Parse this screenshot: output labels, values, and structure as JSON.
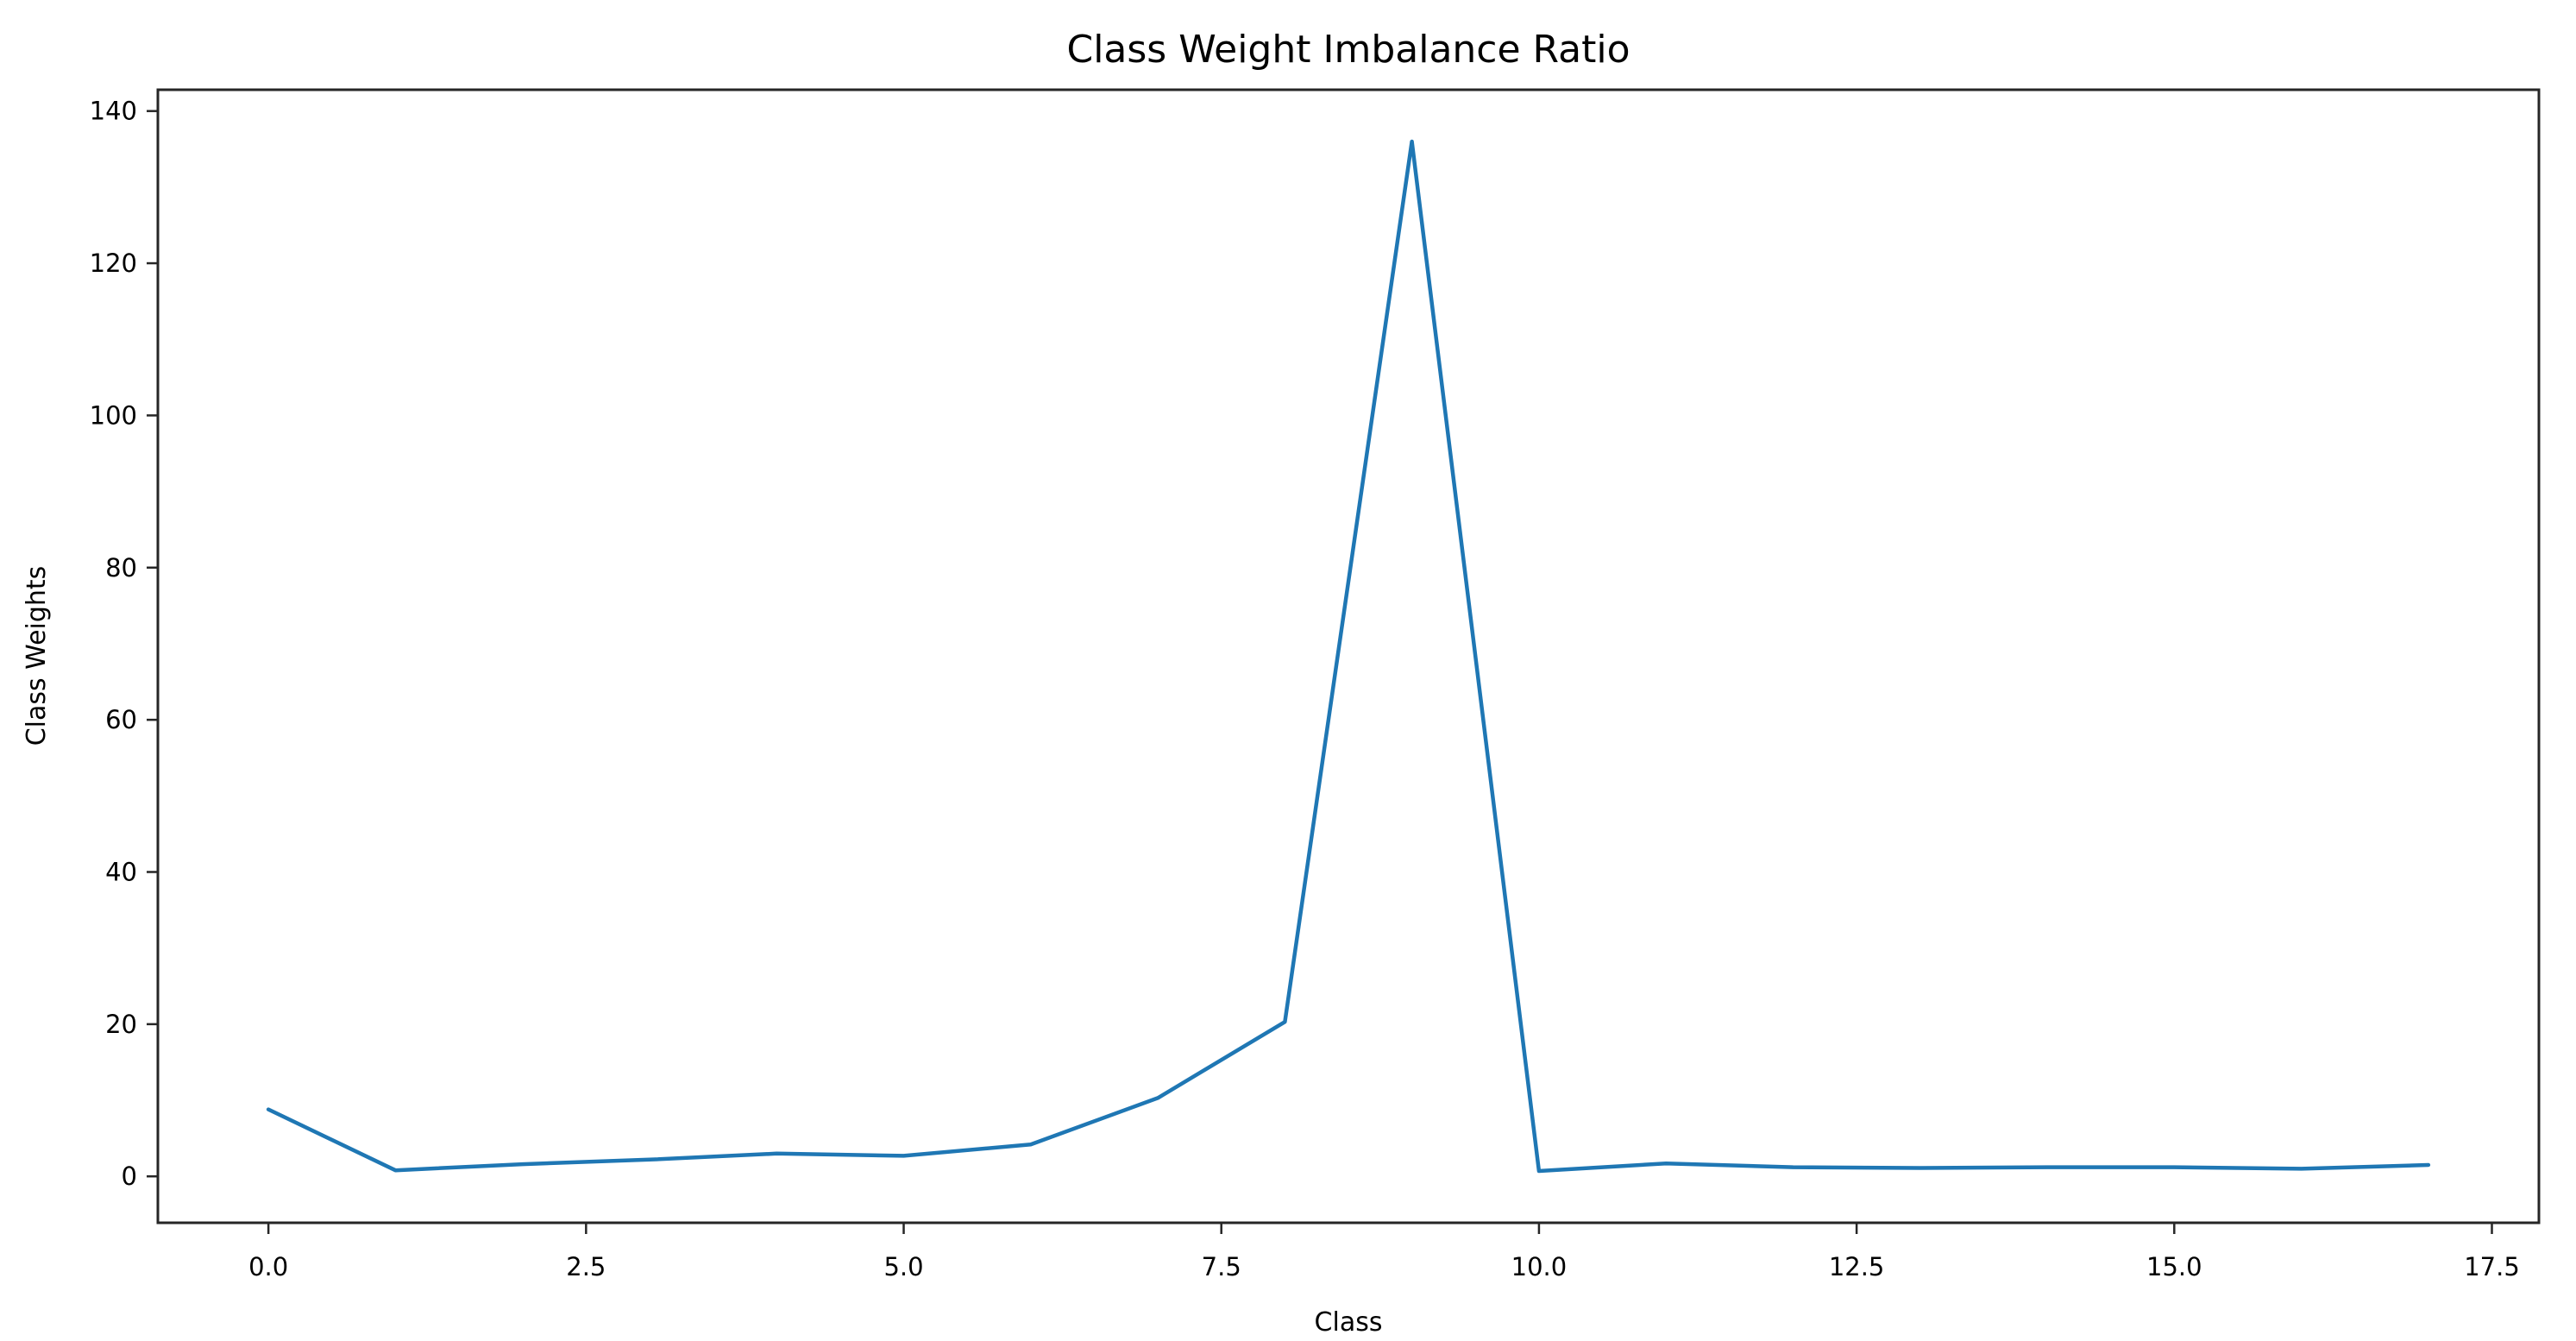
{
  "chart_data": {
    "type": "line",
    "title": "Class Weight Imbalance Ratio",
    "xlabel": "Class",
    "ylabel": "Class Weights",
    "x": [
      0,
      1,
      2,
      3,
      4,
      5,
      6,
      7,
      8,
      9,
      10,
      11,
      12,
      13,
      14,
      15,
      16,
      17
    ],
    "y": [
      8.8,
      0.8,
      1.6,
      2.2,
      3.0,
      2.7,
      4.2,
      10.3,
      20.3,
      136.0,
      0.7,
      1.7,
      1.2,
      1.1,
      1.2,
      1.2,
      1.0,
      1.5
    ],
    "xticks": [
      0.0,
      2.5,
      5.0,
      7.5,
      10.0,
      12.5,
      15.0,
      17.5
    ],
    "xtick_labels": [
      "0.0",
      "2.5",
      "5.0",
      "7.5",
      "10.0",
      "12.5",
      "15.0",
      "17.5"
    ],
    "yticks": [
      0,
      20,
      40,
      60,
      80,
      100,
      120,
      140
    ],
    "ytick_labels": [
      "0",
      "20",
      "40",
      "60",
      "80",
      "100",
      "120",
      "140"
    ],
    "xlim": [
      -0.87,
      17.87
    ],
    "ylim": [
      -6.1,
      142.8
    ],
    "line_color": "#1f77b4",
    "spine_color": "#262626",
    "tick_color": "#262626",
    "background_color": "#ffffff",
    "grid": false,
    "legend": null
  }
}
